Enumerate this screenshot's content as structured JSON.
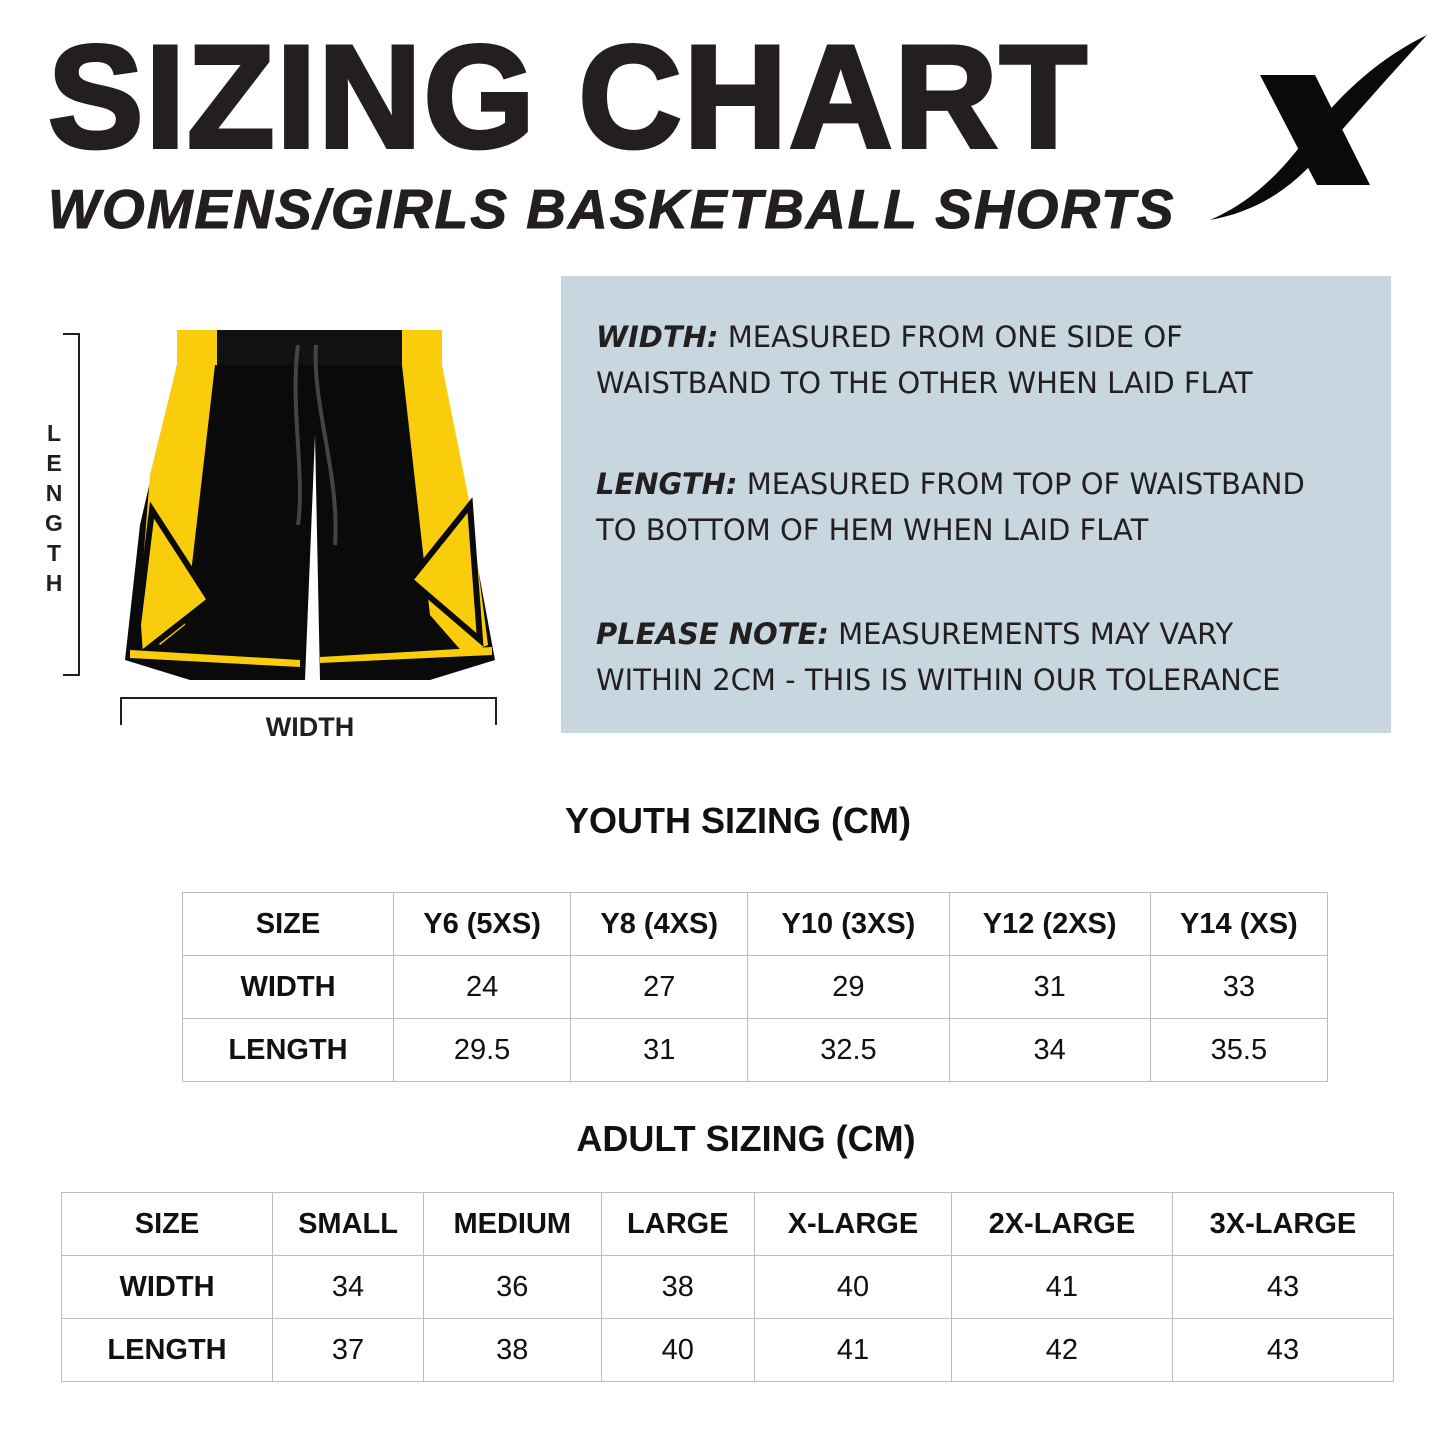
{
  "header": {
    "title": "SIZING CHART",
    "subtitle": "WOMENS/GIRLS BASKETBALL SHORTS",
    "logo_text": "X"
  },
  "diagram": {
    "length_label": [
      "L",
      "E",
      "N",
      "G",
      "T",
      "H"
    ],
    "width_label": "WIDTH",
    "colors": {
      "yellow": "#f9cd0c",
      "black": "#0a0a0a"
    }
  },
  "notes": [
    {
      "label": "WIDTH:",
      "lines": [
        "MEASURED FROM ONE SIDE OF",
        "WAISTBAND TO THE OTHER WHEN LAID FLAT"
      ]
    },
    {
      "label": "LENGTH:",
      "lines": [
        "MEASURED FROM TOP OF WAISTBAND",
        "TO BOTTOM OF HEM WHEN LAID FLAT"
      ]
    },
    {
      "label": "PLEASE NOTE:",
      "lines": [
        "MEASUREMENTS MAY VARY",
        "WITHIN 2CM - THIS IS WITHIN OUR TOLERANCE"
      ]
    }
  ],
  "panel_color": "#c8d6df",
  "youth": {
    "title": "YOUTH SIZING (CM)",
    "rows": [
      [
        "SIZE",
        "Y6 (5XS)",
        "Y8 (4XS)",
        "Y10 (3XS)",
        "Y12 (2XS)",
        "Y14 (XS)"
      ],
      [
        "WIDTH",
        "24",
        "27",
        "29",
        "31",
        "33"
      ],
      [
        "LENGTH",
        "29.5",
        "31",
        "32.5",
        "34",
        "35.5"
      ]
    ]
  },
  "adult": {
    "title": "ADULT SIZING (CM)",
    "rows": [
      [
        "SIZE",
        "SMALL",
        "MEDIUM",
        "LARGE",
        "X-LARGE",
        "2X-LARGE",
        "3X-LARGE"
      ],
      [
        "WIDTH",
        "34",
        "36",
        "38",
        "40",
        "41",
        "43"
      ],
      [
        "LENGTH",
        "37",
        "38",
        "40",
        "41",
        "42",
        "43"
      ]
    ]
  }
}
